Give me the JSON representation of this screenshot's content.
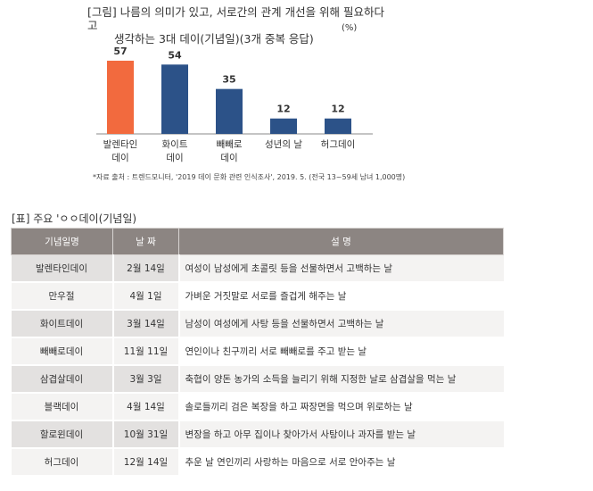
{
  "figure": {
    "title_line1": "[그림] 나름의 의미가 있고, 서로간의 관계 개선을 위해 필요하다고",
    "title_line2": "생각하는 3대 데이(기념일)(3개 중복 응답)",
    "unit": "(%)",
    "source": "*자료 출처 : 트렌드모니터, '2019 데이 문화 관련 인식조사', 2019. 5. (전국 13~59세 남녀 1,000명)"
  },
  "chart_data": {
    "type": "bar",
    "title": "",
    "categories": [
      [
        "발렌타인",
        "데이"
      ],
      [
        "화이트",
        "데이"
      ],
      [
        "빼빼로",
        "데이"
      ],
      [
        "성년의 날"
      ],
      [
        "허그데이"
      ]
    ],
    "values": [
      57,
      54,
      35,
      12,
      12
    ],
    "colors": [
      "#f26a3e",
      "#2c5288",
      "#2c5288",
      "#2c5288",
      "#2c5288"
    ],
    "ylim": [
      0,
      60
    ],
    "grid": false,
    "xlabel": "",
    "ylabel": ""
  },
  "table": {
    "caption": "[표] 주요 'ㅇㅇ데이(기념일)",
    "headers": [
      "기념일명",
      "날 짜",
      "설 명"
    ],
    "rows": [
      [
        "발렌타인데이",
        "2월 14일",
        "여성이 남성에게 초콜릿 등을 선물하면서 고백하는 날"
      ],
      [
        "만우절",
        "4월 1일",
        "가벼운 거짓말로 서로를 즐겁게 해주는 날"
      ],
      [
        "화이트데이",
        "3월 14일",
        "남성이 여성에게 사탕 등을 선물하면서 고백하는 날"
      ],
      [
        "빼빼로데이",
        "11월 11일",
        "연인이나 친구끼리 서로 빼빼로를 주고 받는 날"
      ],
      [
        "삼겹살데이",
        "3월 3일",
        "축협이 양돈 농가의 소득을 늘리기 위해 지정한 날로 삼겹살을 먹는 날"
      ],
      [
        "블랙데이",
        "4월 14일",
        "솔로들끼리 검은 복장을 하고 짜장면을 먹으며 위로하는 날"
      ],
      [
        "할로윈데이",
        "10월 31일",
        "변장을 하고 아무 집이나 찾아가서 사탕이나 과자를 받는 날"
      ],
      [
        "허그데이",
        "12월 14일",
        "추운 날 연인끼리 사랑하는 마음으로 서로 안아주는 날"
      ]
    ]
  }
}
